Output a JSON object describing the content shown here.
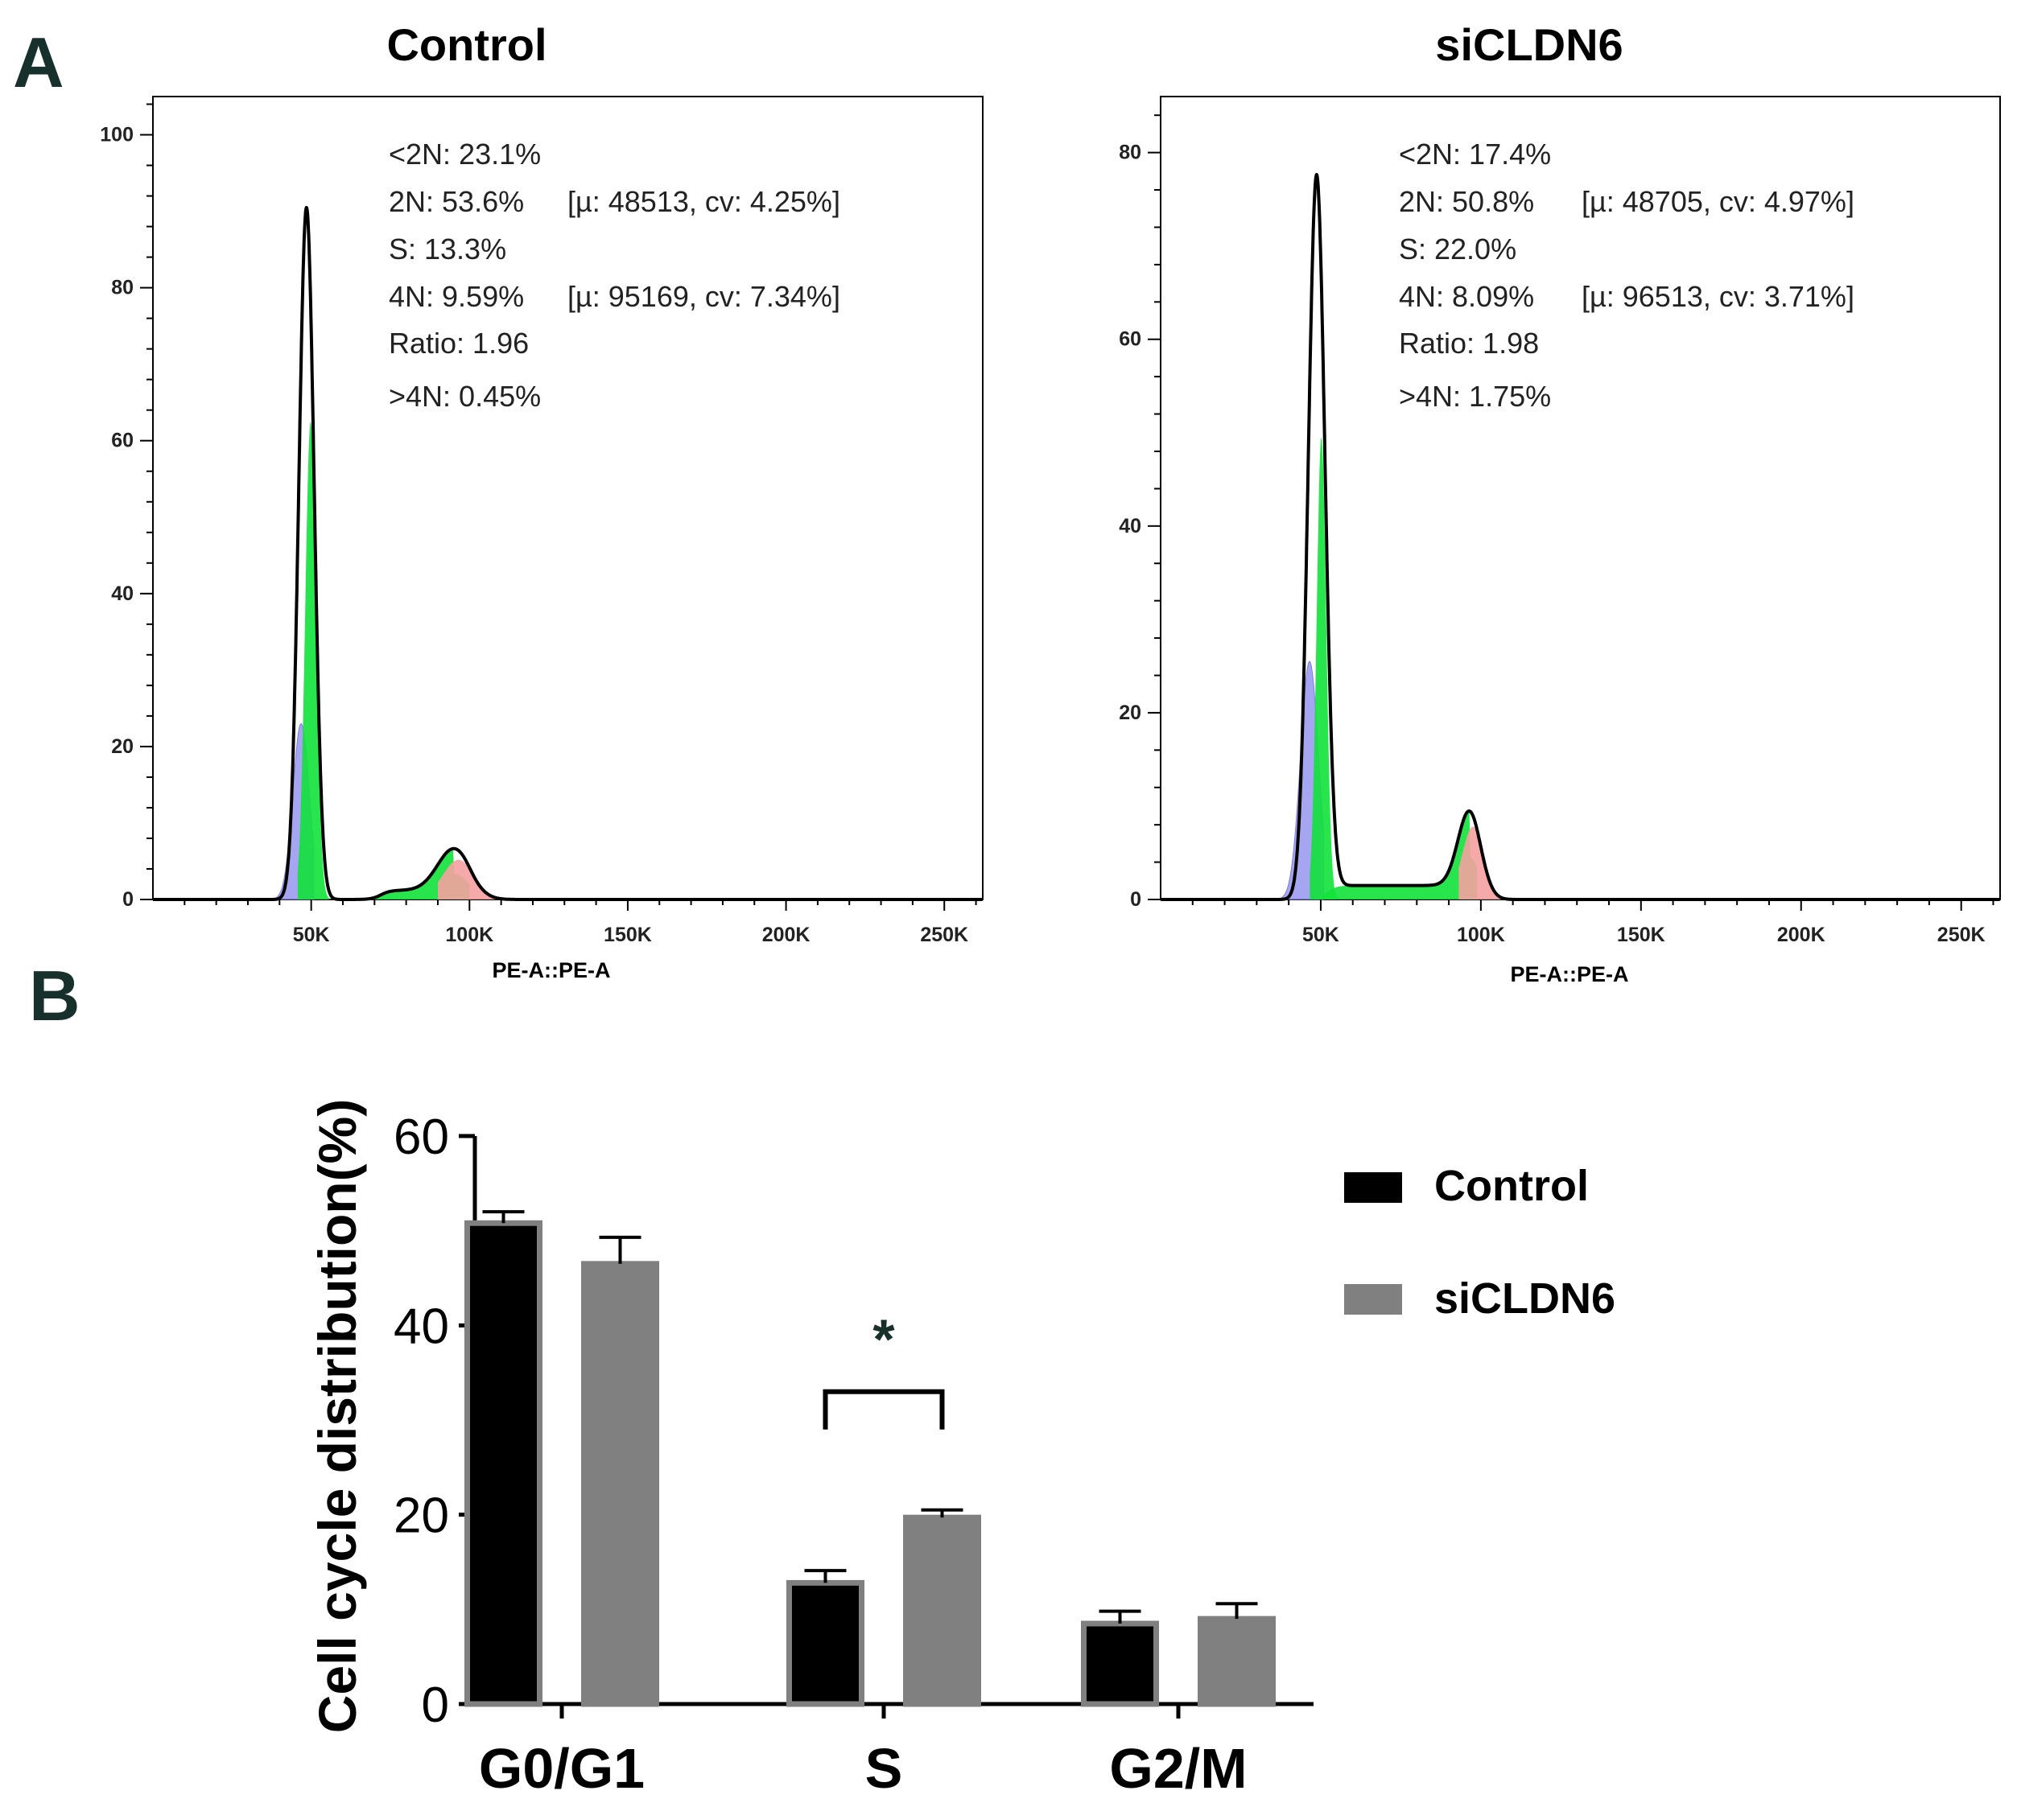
{
  "panel_labels": [
    "A",
    "B"
  ],
  "chart_data": [
    {
      "type": "histogram",
      "title": "Control",
      "xlabel": "PE-A::PE-A",
      "ylabel": "",
      "xlim": [
        0,
        262144
      ],
      "ylim": [
        0,
        105
      ],
      "x_ticks": [
        50000,
        100000,
        150000,
        200000,
        250000
      ],
      "x_tick_labels": [
        "50K",
        "100K",
        "150K",
        "200K",
        "250K"
      ],
      "y_ticks": [
        0,
        20,
        40,
        60,
        80,
        100
      ],
      "y_tick_labels": [
        "0",
        "20",
        "40",
        "60",
        "80",
        "100"
      ],
      "stats": [
        "<2N: 23.1%",
        "2N: 53.6%",
        "S: 13.3%",
        "4N: 9.59%",
        "Ratio: 1.96",
        ">4N: 0.45%"
      ],
      "stats_extra": [
        "[µ: 48513, cv: 4.25%]",
        "[µ: 95169, cv: 7.34%]"
      ],
      "fit": {
        "g1_mean": 48513,
        "g1_peak": 90.5,
        "g1_sigma": 2400,
        "g2_mean": 95169,
        "g2_peak": 5.5,
        "g2_sigma": 5200,
        "s_level": 1.2,
        "s_start": 72000,
        "s_end": 100000,
        "blue_peak": 23,
        "blue_mean": 46800,
        "blue_sigma": 2600,
        "green_peak": 62.5,
        "green_mean": 49800,
        "green_sigma": 1700,
        "red_peak": 5.2,
        "red_mean": 96500,
        "red_sigma": 5000
      },
      "colors": {
        "line": "#000000",
        "blue": "#9c9cf0",
        "green": "#12e23a",
        "red": "#f5a0a0"
      }
    },
    {
      "type": "histogram",
      "title": "siCLDN6",
      "xlabel": "PE-A::PE-A",
      "ylabel": "",
      "xlim": [
        0,
        262144
      ],
      "ylim": [
        0,
        86
      ],
      "x_ticks": [
        50000,
        100000,
        150000,
        200000,
        250000
      ],
      "x_tick_labels": [
        "50K",
        "100K",
        "150K",
        "200K",
        "250K"
      ],
      "y_ticks": [
        0,
        20,
        40,
        60,
        80
      ],
      "y_tick_labels": [
        "0",
        "20",
        "40",
        "60",
        "80"
      ],
      "stats": [
        "<2N: 17.4%",
        "2N: 50.8%",
        "S: 22.0%",
        "4N: 8.09%",
        "Ratio: 1.98",
        ">4N: 1.75%"
      ],
      "stats_extra": [
        "[µ: 48705, cv: 4.97%]",
        "[µ: 96513, cv: 3.71%]"
      ],
      "fit": {
        "g1_mean": 48705,
        "g1_peak": 77.5,
        "g1_sigma": 2600,
        "g2_mean": 96513,
        "g2_peak": 8.2,
        "g2_sigma": 3600,
        "s_level": 1.5,
        "s_start": 52000,
        "s_end": 99000,
        "blue_peak": 25.5,
        "blue_mean": 46500,
        "blue_sigma": 2800,
        "green_peak": 49.5,
        "green_mean": 50200,
        "green_sigma": 1500,
        "red_peak": 7.8,
        "red_mean": 97500,
        "red_sigma": 3400
      },
      "colors": {
        "line": "#000000",
        "blue": "#9c9cf0",
        "green": "#12e23a",
        "red": "#f5a0a0"
      }
    },
    {
      "type": "bar",
      "title": "",
      "categories": [
        "G0/G1",
        "S",
        "G2/M"
      ],
      "series": [
        {
          "name": "Control",
          "values": [
            50.8,
            12.8,
            8.5
          ],
          "errors": [
            1.2,
            1.3,
            1.3
          ],
          "color": "#000000",
          "edge": "#808080"
        },
        {
          "name": "siCLDN6",
          "values": [
            46.5,
            19.7,
            9.0
          ],
          "errors": [
            2.8,
            0.8,
            1.6
          ],
          "color": "#808080",
          "edge": "#808080"
        }
      ],
      "xlabel": "",
      "ylabel": "Cell cycle distribution(%)",
      "ylim": [
        0,
        60
      ],
      "y_ticks": [
        0,
        20,
        40,
        60
      ],
      "y_tick_labels": [
        "0",
        "20",
        "40",
        "60"
      ],
      "legend_position": "top-right",
      "significance": [
        {
          "category": "S",
          "label": "*"
        }
      ]
    }
  ]
}
